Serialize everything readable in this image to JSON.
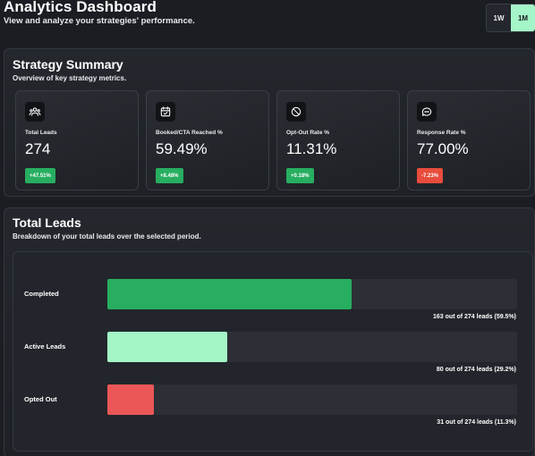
{
  "header": {
    "title": "Analytics Dashboard",
    "subtitle": "View and analyze your strategies' performance.",
    "range_options": [
      "1W",
      "1M"
    ],
    "selected_range": "1M"
  },
  "summary": {
    "title": "Strategy Summary",
    "subtitle": "Overview of key strategy metrics.",
    "metrics": [
      {
        "icon": "users-icon",
        "label": "Total Leads",
        "value": "274",
        "change": "+47.51%",
        "trend": "up"
      },
      {
        "icon": "calendar-check-icon",
        "label": "Booked/CTA Reached %",
        "value": "59.49%",
        "change": "+8.48%",
        "trend": "up"
      },
      {
        "icon": "ban-icon",
        "label": "Opt-Out Rate %",
        "value": "11.31%",
        "change": "+0.18%",
        "trend": "up"
      },
      {
        "icon": "chat-icon",
        "label": "Response Rate %",
        "value": "77.00%",
        "change": "-7.23%",
        "trend": "down"
      }
    ]
  },
  "leads": {
    "title": "Total Leads",
    "subtitle": "Breakdown of your total leads over the selected period.",
    "total": 274,
    "rows": [
      {
        "label": "Completed",
        "count": 163,
        "fraction": 0.595,
        "color": "#27ae60",
        "caption": "163 out of 274 leads (59.5%)"
      },
      {
        "label": "Active Leads",
        "count": 80,
        "fraction": 0.292,
        "color": "#a4f5c7",
        "caption": "80 out of 274 leads (29.2%)"
      },
      {
        "label": "Opted Out",
        "count": 31,
        "fraction": 0.113,
        "color": "#eb5757",
        "caption": "31 out of 274 leads (11.3%)"
      }
    ]
  }
}
